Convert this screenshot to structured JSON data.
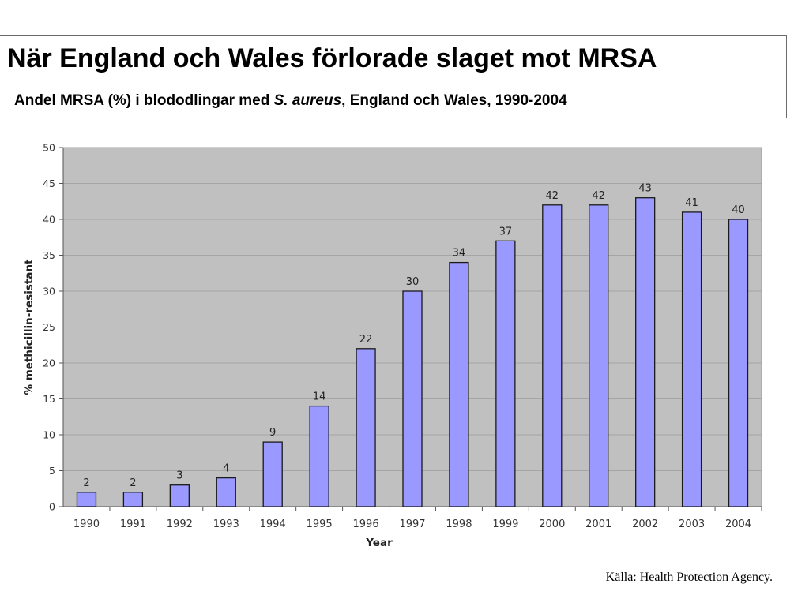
{
  "header": {
    "title": "När England och Wales förlorade slaget mot MRSA",
    "subtitle_pre": "Andel MRSA (%) i blododlingar med ",
    "subtitle_em": "S. aureus",
    "subtitle_post": ", England och Wales, 1990-2004"
  },
  "source": "Källa: Health Protection Agency.",
  "colors": {
    "plot_bg": "#c0c0c0",
    "bar_fill": "#9999ff",
    "bar_stroke": "#1a1a1a",
    "grid": "#a5a5a5"
  },
  "chart_data": {
    "type": "bar",
    "categories": [
      "1990",
      "1991",
      "1992",
      "1993",
      "1994",
      "1995",
      "1996",
      "1997",
      "1998",
      "1999",
      "2000",
      "2001",
      "2002",
      "2003",
      "2004"
    ],
    "values": [
      2,
      2,
      3,
      4,
      9,
      14,
      22,
      30,
      34,
      37,
      42,
      42,
      43,
      41,
      40
    ],
    "data_labels": [
      "2",
      "2",
      "3",
      "4",
      "9",
      "14",
      "22",
      "30",
      "34",
      "37",
      "42",
      "42",
      "43",
      "41",
      "40"
    ],
    "xlabel": "Year",
    "ylabel": "% methicillin-resistant",
    "ylim": [
      0,
      50
    ],
    "yticks": [
      0,
      5,
      10,
      15,
      20,
      25,
      30,
      35,
      40,
      45,
      50
    ],
    "grid": true,
    "legend": "none"
  }
}
